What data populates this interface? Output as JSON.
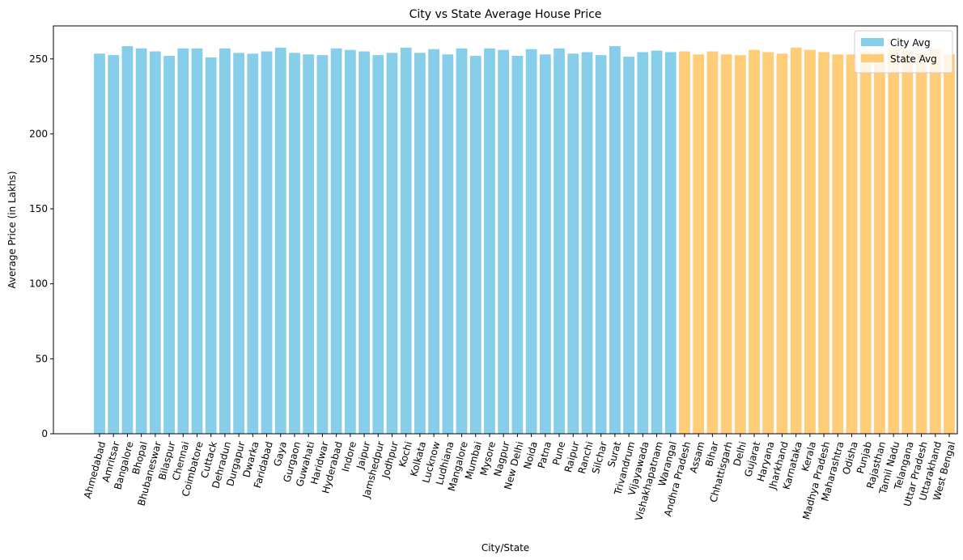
{
  "chart_data": {
    "type": "bar",
    "title": "City vs State Average House Price",
    "xlabel": "City/State",
    "ylabel": "Average Price (in Lakhs)",
    "ylim": [
      0,
      272
    ],
    "yticks": [
      0,
      50,
      100,
      150,
      200,
      250
    ],
    "grid": false,
    "legend_position": "top-right",
    "series": [
      {
        "name": "City Avg",
        "color": "#87ceeb",
        "categories": [
          "Ahmedabad",
          "Amritsar",
          "Bangalore",
          "Bhopal",
          "Bhubaneswar",
          "Bilaspur",
          "Chennai",
          "Coimbatore",
          "Cuttack",
          "Dehradun",
          "Durgapur",
          "Dwarka",
          "Faridabad",
          "Gaya",
          "Gurgaon",
          "Guwahati",
          "Haridwar",
          "Hyderabad",
          "Indore",
          "Jaipur",
          "Jamshedpur",
          "Jodhpur",
          "Kochi",
          "Kolkata",
          "Lucknow",
          "Ludhiana",
          "Mangalore",
          "Mumbai",
          "Mysore",
          "Nagpur",
          "New Delhi",
          "Noida",
          "Patna",
          "Pune",
          "Raipur",
          "Ranchi",
          "Silchar",
          "Surat",
          "Trivandrum",
          "Vijayawada",
          "Vishakhapatnam",
          "Warangal"
        ],
        "values": [
          253.5,
          252.5,
          258.5,
          257,
          255,
          252,
          257,
          257,
          251,
          257,
          254,
          253.5,
          255,
          257.5,
          254,
          253,
          252.5,
          257,
          256,
          255,
          252.5,
          254,
          257.5,
          254,
          256.5,
          253,
          257,
          252,
          257,
          256,
          252,
          256.5,
          253,
          257,
          253.5,
          254.5,
          252.5,
          258.5,
          251.5,
          254.5,
          255.5,
          254.5
        ]
      },
      {
        "name": "State Avg",
        "color": "#ffcc77",
        "categories": [
          "Andhra Pradesh",
          "Assam",
          "Bihar",
          "Chhattisgarh",
          "Delhi",
          "Gujarat",
          "Haryana",
          "Jharkhand",
          "Karnataka",
          "Kerala",
          "Madhya Pradesh",
          "Maharashtra",
          "Odisha",
          "Punjab",
          "Rajasthan",
          "Tamil Nadu",
          "Telangana",
          "Uttar Pradesh",
          "Uttarakhand",
          "West Bengal"
        ],
        "values": [
          255,
          253,
          255,
          253,
          252.5,
          256,
          254.5,
          253.5,
          257.5,
          256,
          254.5,
          253,
          253,
          254.5,
          254.5,
          257,
          256,
          253.5,
          256.5,
          253
        ]
      }
    ]
  }
}
